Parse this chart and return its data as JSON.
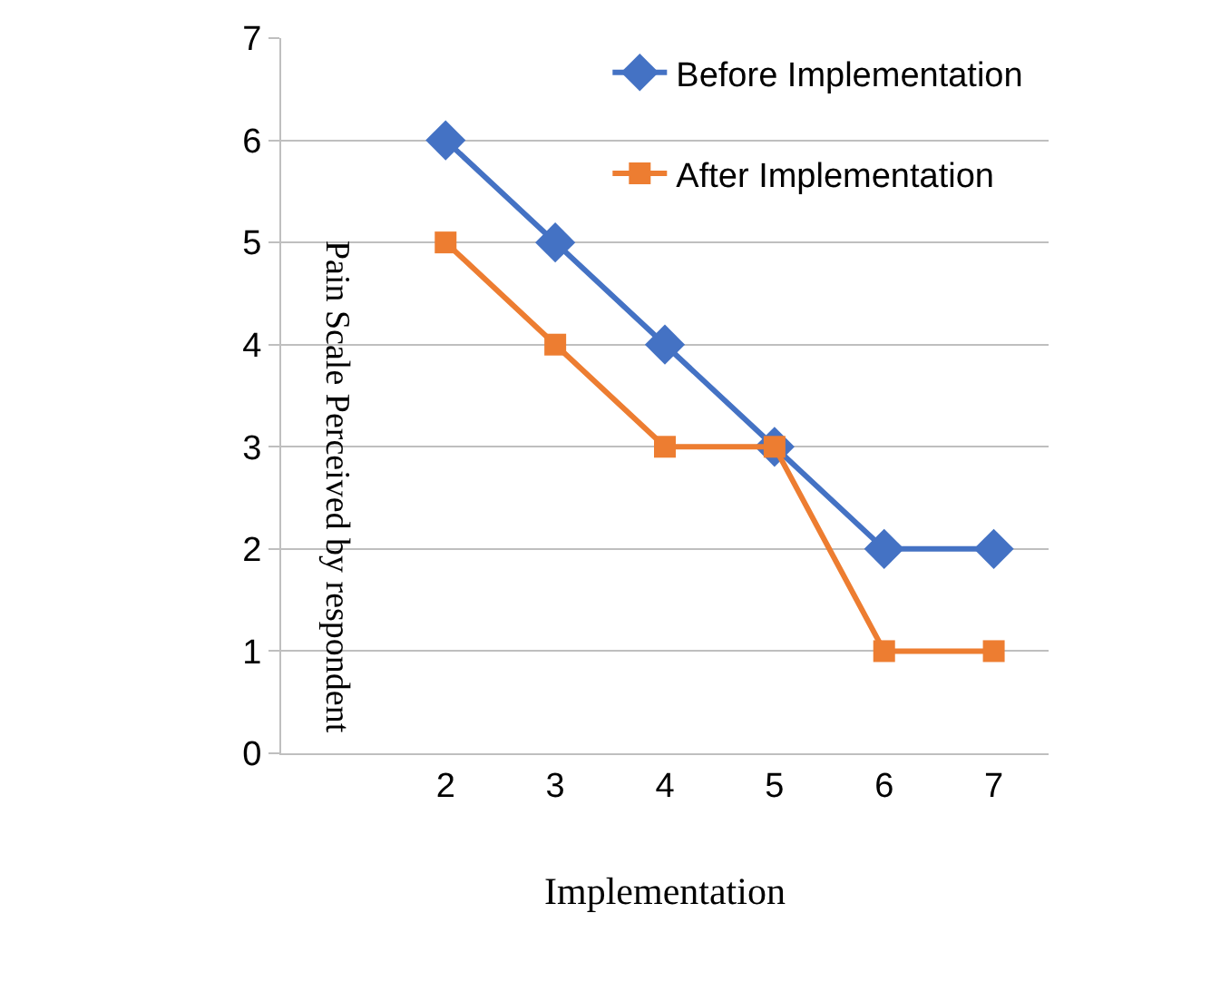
{
  "chart_data": {
    "type": "line",
    "xlabel": "Implementation",
    "ylabel": "Pain Scale Perceived by respondent",
    "categories": [
      null,
      "2",
      "3",
      "4",
      "5",
      "6",
      "7"
    ],
    "series": [
      {
        "name": "Before Implementation",
        "color": "#4472c4",
        "marker": "diamond",
        "values": [
          null,
          6,
          5,
          4,
          3,
          2,
          2
        ]
      },
      {
        "name": "After Implementation",
        "color": "#ed7d31",
        "marker": "square",
        "values": [
          null,
          5,
          4,
          3,
          3,
          1,
          1
        ]
      }
    ],
    "ylim": [
      0,
      7
    ],
    "yticks": [
      0,
      1,
      2,
      3,
      4,
      5,
      6,
      7
    ],
    "grid": "y",
    "legend": "top right",
    "line_style": "solid"
  }
}
